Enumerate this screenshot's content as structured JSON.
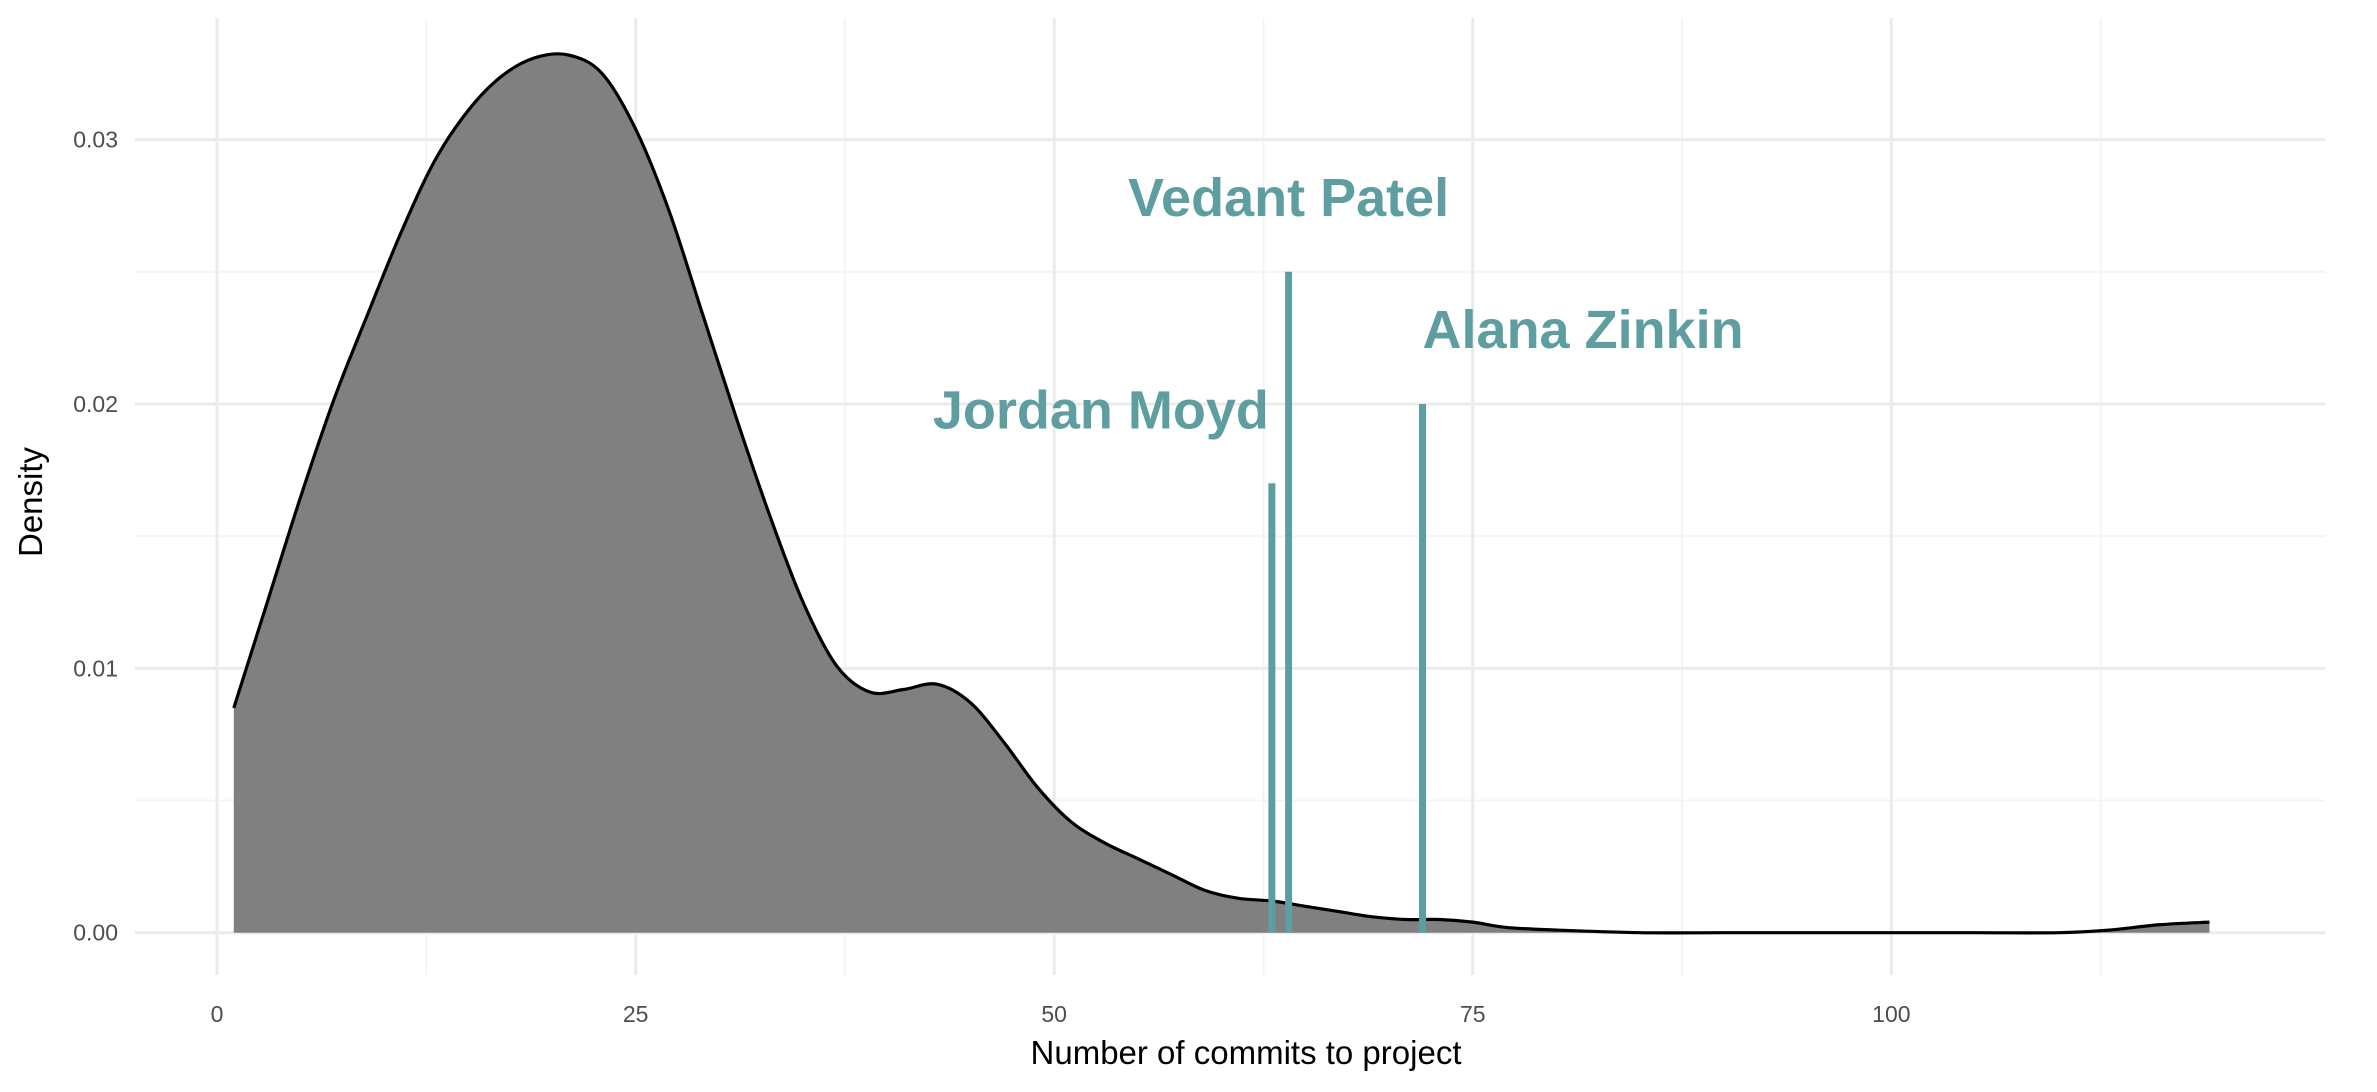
{
  "chart_data": {
    "type": "area",
    "xlabel": "Number of commits to project",
    "ylabel": "Density",
    "xlim": [
      -4.9,
      125.9
    ],
    "ylim": [
      -0.0016,
      0.0346
    ],
    "x_ticks": [
      0,
      25,
      50,
      75,
      100
    ],
    "x_tick_labels": [
      "0",
      "25",
      "50",
      "75",
      "100"
    ],
    "y_ticks": [
      0.0,
      0.01,
      0.02,
      0.03
    ],
    "y_tick_labels": [
      "0.00",
      "0.01",
      "0.02",
      "0.03"
    ],
    "grid": true,
    "legend": "none",
    "fill_color": "#808080",
    "line_color": "#000000",
    "series": [
      {
        "x": [
          1,
          3,
          5,
          7,
          9,
          11,
          13,
          15,
          17,
          19,
          21,
          23,
          25,
          27,
          29,
          31,
          33,
          35,
          37,
          39,
          41,
          43,
          45,
          47,
          49,
          51,
          53,
          55,
          57,
          59,
          61,
          63,
          65,
          67,
          69,
          71,
          73,
          75,
          77,
          80,
          85,
          90,
          95,
          100,
          105,
          110,
          113,
          116,
          119
        ],
        "y": [
          0.0085,
          0.0125,
          0.0165,
          0.0202,
          0.0234,
          0.0265,
          0.0292,
          0.0311,
          0.0324,
          0.0331,
          0.0332,
          0.0325,
          0.0304,
          0.0273,
          0.0234,
          0.0195,
          0.0158,
          0.0125,
          0.0101,
          0.0091,
          0.0092,
          0.0094,
          0.0087,
          0.0072,
          0.0055,
          0.0042,
          0.0034,
          0.0028,
          0.0022,
          0.0016,
          0.0013,
          0.0012,
          0.001,
          0.0008,
          0.0006,
          0.0005,
          0.0005,
          0.0004,
          0.0002,
          0.0001,
          0.0,
          0.0,
          0.0,
          0.0,
          0.0,
          0.0,
          0.0001,
          0.0003,
          0.0004
        ]
      }
    ],
    "annotations": [
      {
        "label": "Jordan Moyd",
        "x": 63,
        "y_top": 0.017,
        "color": "#5f9ea0"
      },
      {
        "label": "Vedant Patel",
        "x": 64,
        "y_top": 0.025,
        "color": "#5f9ea0"
      },
      {
        "label": "Alana Zinkin",
        "x": 72,
        "y_top": 0.02,
        "color": "#5f9ea0"
      }
    ]
  }
}
